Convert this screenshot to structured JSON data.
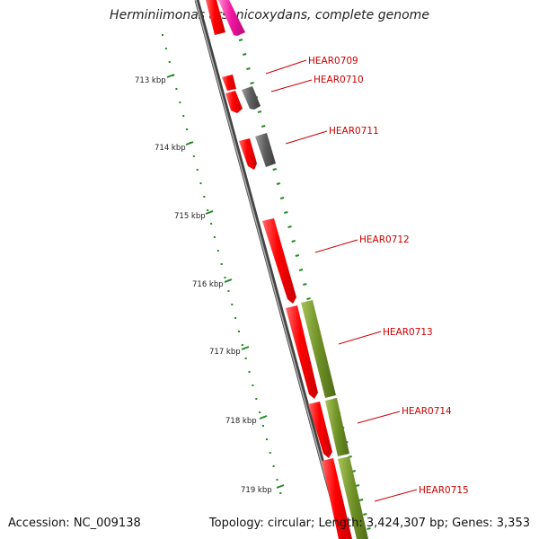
{
  "title": "Herminiimonas arsenicoxydans, complete genome",
  "footer": {
    "accession": "Accession: NC_009138",
    "topology": "Topology: circular; Length: 3,424,307 bp; Genes: 3,353"
  },
  "scale_labels": [
    "713 kbp",
    "714 kbp",
    "715 kbp",
    "716 kbp",
    "717 kbp",
    "718 kbp",
    "719 kbp"
  ],
  "genes": [
    {
      "name": "HEAR0709",
      "color": "#e0109a"
    },
    {
      "name": "HEAR0710",
      "color": "#555555"
    },
    {
      "name": "HEAR0711",
      "color": "#555555"
    },
    {
      "name": "HEAR0712",
      "color": "#ee0000"
    },
    {
      "name": "HEAR0713",
      "color": "#6b8e23"
    },
    {
      "name": "HEAR0714",
      "color": "#6b8e23"
    },
    {
      "name": "HEAR0715",
      "color": "#6b8e23"
    }
  ],
  "colors": {
    "forward_strand": "#ee0000",
    "pink_feature": "#e0109a",
    "gray_feature": "#555555",
    "olive_feature": "#6b8e23",
    "backbone": "#777777",
    "scale_ticks": "#228b22",
    "label_text": "#cc0000"
  }
}
